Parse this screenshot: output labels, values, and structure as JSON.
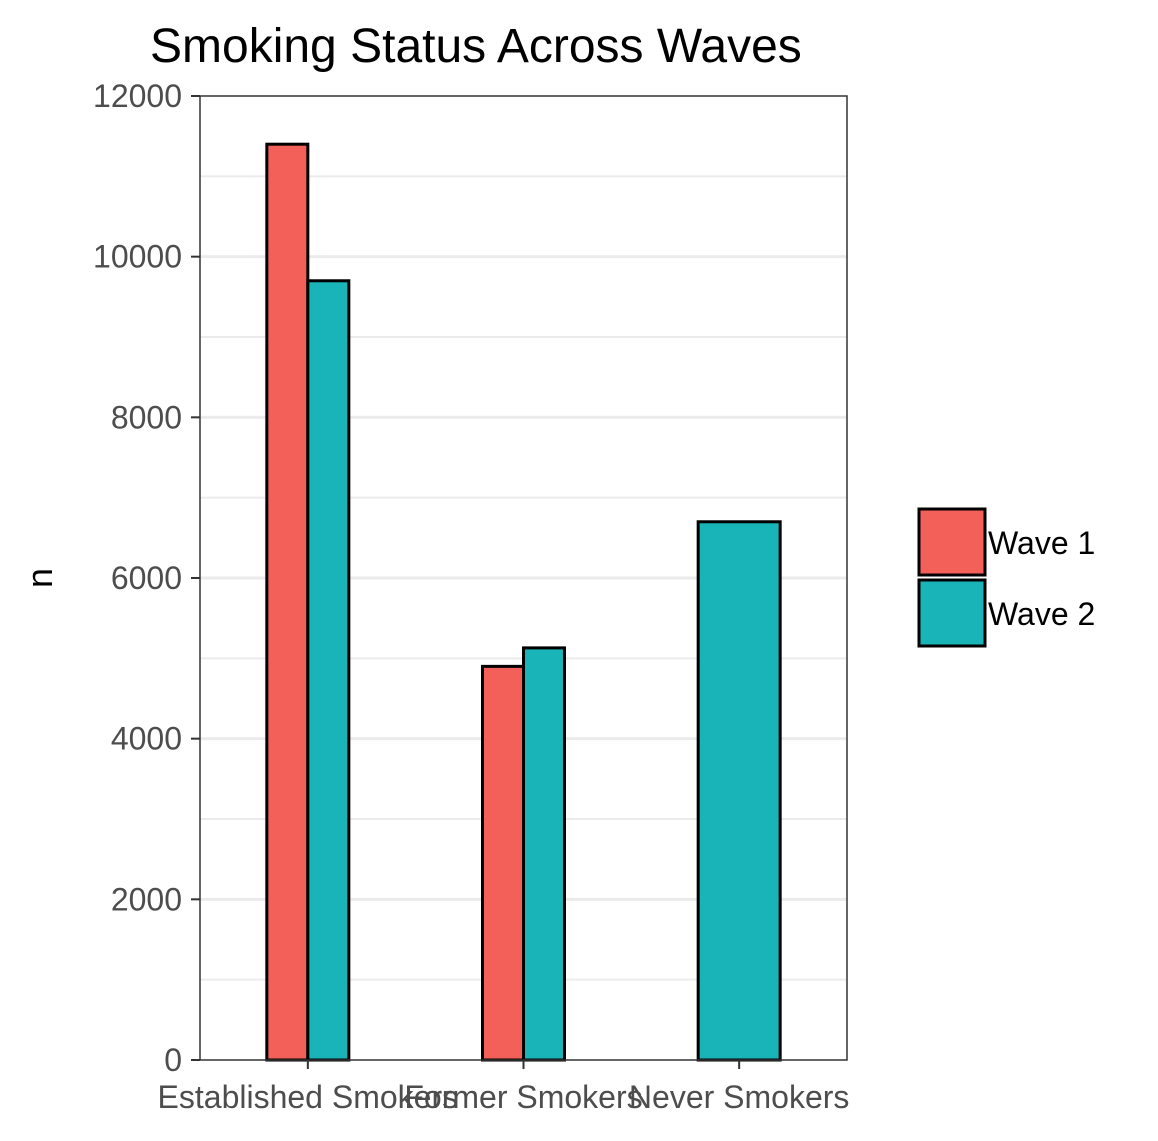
{
  "chart_data": {
    "type": "bar",
    "title": "Smoking Status Across Waves",
    "xlabel": "",
    "ylabel": "n",
    "categories": [
      "Established Smokers",
      "Former Smokers",
      "Never Smokers"
    ],
    "series": [
      {
        "name": "Wave 1",
        "color": "#F8766D",
        "values": [
          11400,
          4900,
          null
        ]
      },
      {
        "name": "Wave 2",
        "color": "#00BFC4",
        "values": [
          9700,
          5130,
          6700
        ]
      }
    ],
    "ylim": [
      0,
      12000
    ],
    "yticks": [
      "0",
      "2000",
      "4000",
      "6000",
      "8000",
      "10000",
      "12000"
    ],
    "grid": true,
    "legend_position": "right",
    "colors": {
      "wave1": "#F35F59",
      "wave2": "#19B4B8",
      "grid": "#EBEBEB",
      "border": "#333333"
    }
  }
}
